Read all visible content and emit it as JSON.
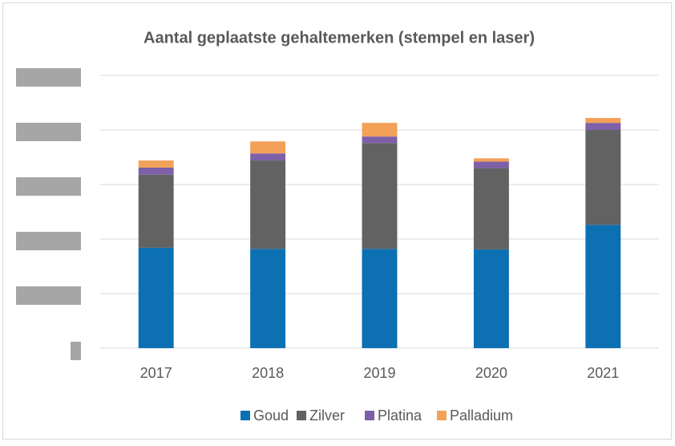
{
  "chart_data": {
    "type": "stacked_bar",
    "title": "Aantal geplaatste gehaltemerken (stempel en laser)",
    "categories": [
      "2017",
      "2018",
      "2019",
      "2020",
      "2021"
    ],
    "series": [
      {
        "name": "Goud",
        "color": "#0c70b3",
        "values": [
          1.84,
          1.82,
          1.82,
          1.81,
          2.26
        ]
      },
      {
        "name": "Zilver",
        "color": "#626262",
        "values": [
          1.34,
          1.62,
          1.94,
          1.49,
          1.74
        ]
      },
      {
        "name": "Platina",
        "color": "#7d60a8",
        "values": [
          0.13,
          0.13,
          0.12,
          0.12,
          0.13
        ]
      },
      {
        "name": "Palladium",
        "color": "#f3a158",
        "values": [
          0.13,
          0.22,
          0.25,
          0.06,
          0.09
        ]
      }
    ],
    "ylim": [
      0,
      5
    ],
    "yticks": [
      0,
      1,
      2,
      3,
      4,
      5
    ],
    "grid": true,
    "legend": "bottom"
  }
}
